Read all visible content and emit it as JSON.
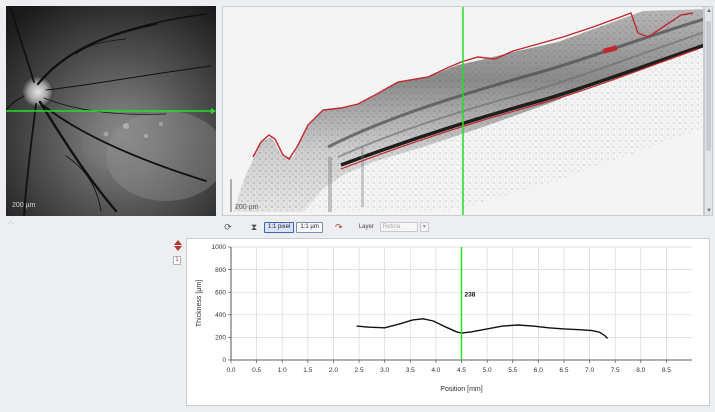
{
  "fundus": {
    "scale_label": "200 µm",
    "scan_line_color": "#22e02a"
  },
  "bscan": {
    "scale_label": "200 µm",
    "cursor_color": "#22e02a",
    "segmentation_color": "#c0282d"
  },
  "toolbar": {
    "pixel_btn": "1:1 pixel",
    "um_btn": "1:1 µm",
    "layer_label": "Layer",
    "layer_value": "Retina"
  },
  "side_controls": {
    "value": "1"
  },
  "chart_data": {
    "type": "line",
    "xlabel": "Position [mm]",
    "ylabel": "Thickness [µm]",
    "xlim": [
      0,
      9
    ],
    "ylim": [
      0,
      1000
    ],
    "x_ticks": [
      "0.0",
      "0.5",
      "1.0",
      "1.5",
      "2.0",
      "2.5",
      "3.0",
      "3.5",
      "4.0",
      "4.5",
      "5.0",
      "5.5",
      "6.0",
      "6.5",
      "7.0",
      "7.5",
      "8.0",
      "8.5"
    ],
    "y_ticks": [
      "0",
      "200",
      "400",
      "600",
      "800",
      "1000"
    ],
    "cursor_x": 4.5,
    "cursor_label": "238",
    "grid": true,
    "series": [
      {
        "x": [
          2.45,
          2.7,
          3.0,
          3.3,
          3.55,
          3.75,
          3.95,
          4.2,
          4.4,
          4.5,
          4.7,
          5.0,
          5.3,
          5.6,
          5.9,
          6.2,
          6.5,
          6.8,
          7.05,
          7.2,
          7.3,
          7.35
        ],
        "values": [
          300,
          290,
          285,
          320,
          355,
          365,
          345,
          290,
          250,
          238,
          250,
          275,
          300,
          310,
          300,
          285,
          275,
          268,
          260,
          245,
          215,
          190
        ]
      }
    ]
  }
}
